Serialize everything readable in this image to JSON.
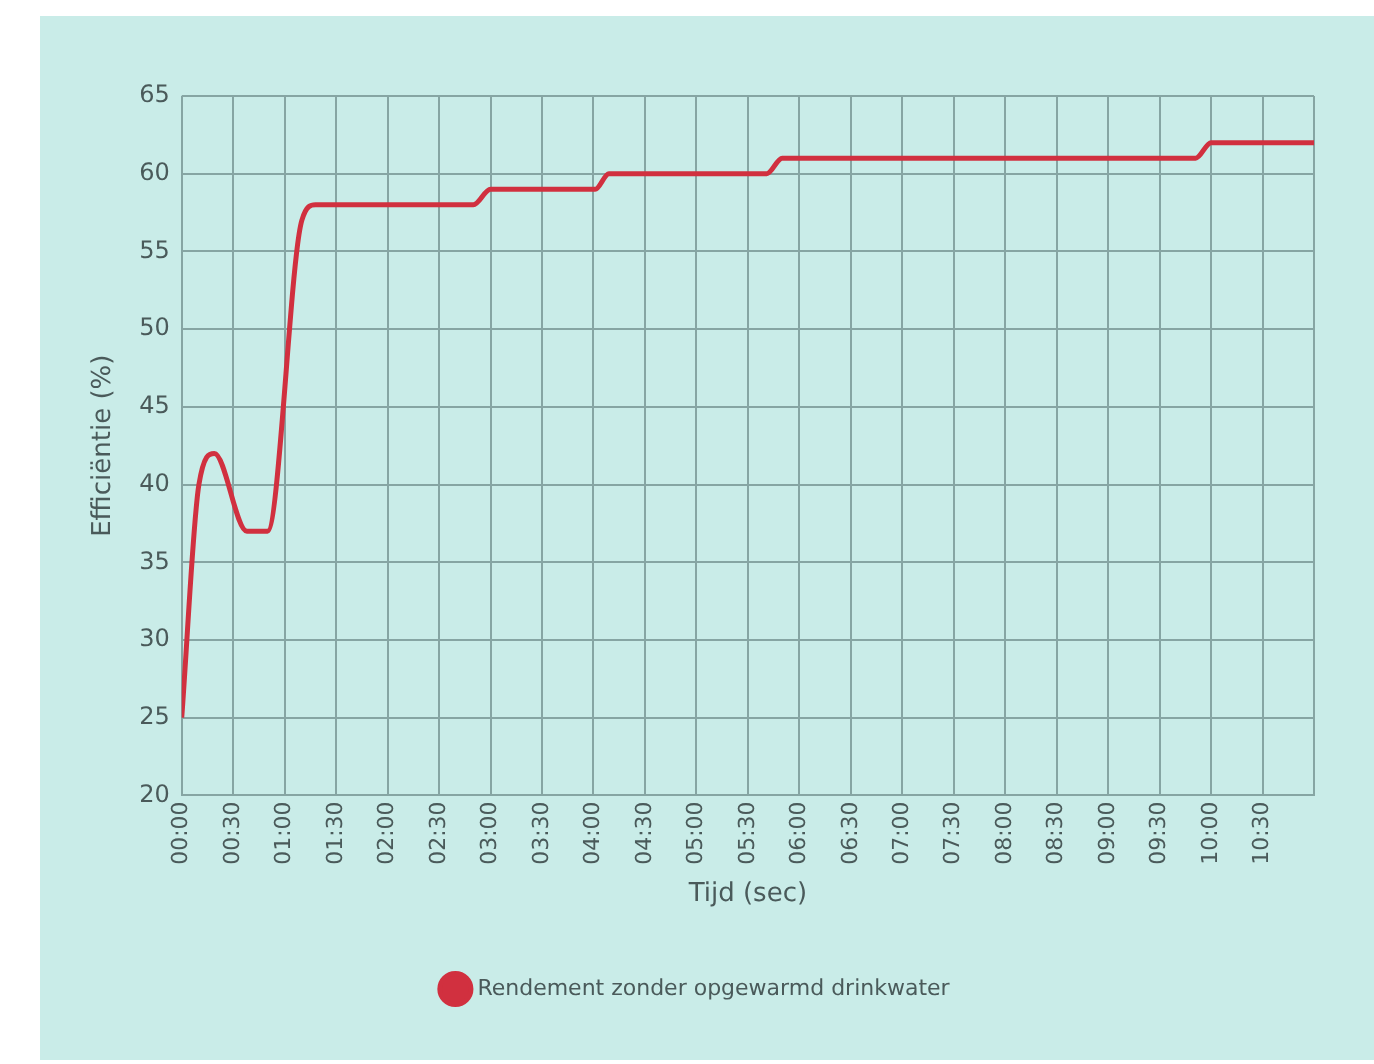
{
  "chart_data": {
    "type": "line",
    "xlabel": "Tijd (sec)",
    "ylabel": "Efficiëntie (%)",
    "xlim": [
      0,
      660
    ],
    "ylim": [
      20,
      65
    ],
    "yticks": [
      20,
      25,
      30,
      35,
      40,
      45,
      50,
      55,
      60,
      65
    ],
    "xticks": [
      {
        "value": 0,
        "label": "00:00"
      },
      {
        "value": 30,
        "label": "00:30"
      },
      {
        "value": 60,
        "label": "01:00"
      },
      {
        "value": 90,
        "label": "01:30"
      },
      {
        "value": 120,
        "label": "02:00"
      },
      {
        "value": 150,
        "label": "02:30"
      },
      {
        "value": 180,
        "label": "03:00"
      },
      {
        "value": 210,
        "label": "03:30"
      },
      {
        "value": 240,
        "label": "04:00"
      },
      {
        "value": 270,
        "label": "04:30"
      },
      {
        "value": 300,
        "label": "05:00"
      },
      {
        "value": 330,
        "label": "05:30"
      },
      {
        "value": 360,
        "label": "06:00"
      },
      {
        "value": 390,
        "label": "06:30"
      },
      {
        "value": 420,
        "label": "07:00"
      },
      {
        "value": 450,
        "label": "07:30"
      },
      {
        "value": 480,
        "label": "08:00"
      },
      {
        "value": 510,
        "label": "08:30"
      },
      {
        "value": 540,
        "label": "09:00"
      },
      {
        "value": 570,
        "label": "09:30"
      },
      {
        "value": 600,
        "label": "10:00"
      },
      {
        "value": 630,
        "label": "10:30"
      },
      {
        "value": 660,
        "label": null
      }
    ],
    "series": [
      {
        "name": "Rendement zonder opgewarmd drinkwater",
        "color": "#d1303f",
        "x": [
          0,
          10,
          19,
          38,
          50,
          70,
          78,
          170,
          180,
          241,
          249,
          341,
          350,
          591,
          600,
          660
        ],
        "values": [
          25,
          40,
          42,
          37,
          37,
          57,
          58,
          58,
          59,
          59,
          60,
          60,
          61,
          61,
          62,
          62
        ]
      }
    ],
    "grid": true,
    "legend": "bottom",
    "marker": "none"
  }
}
